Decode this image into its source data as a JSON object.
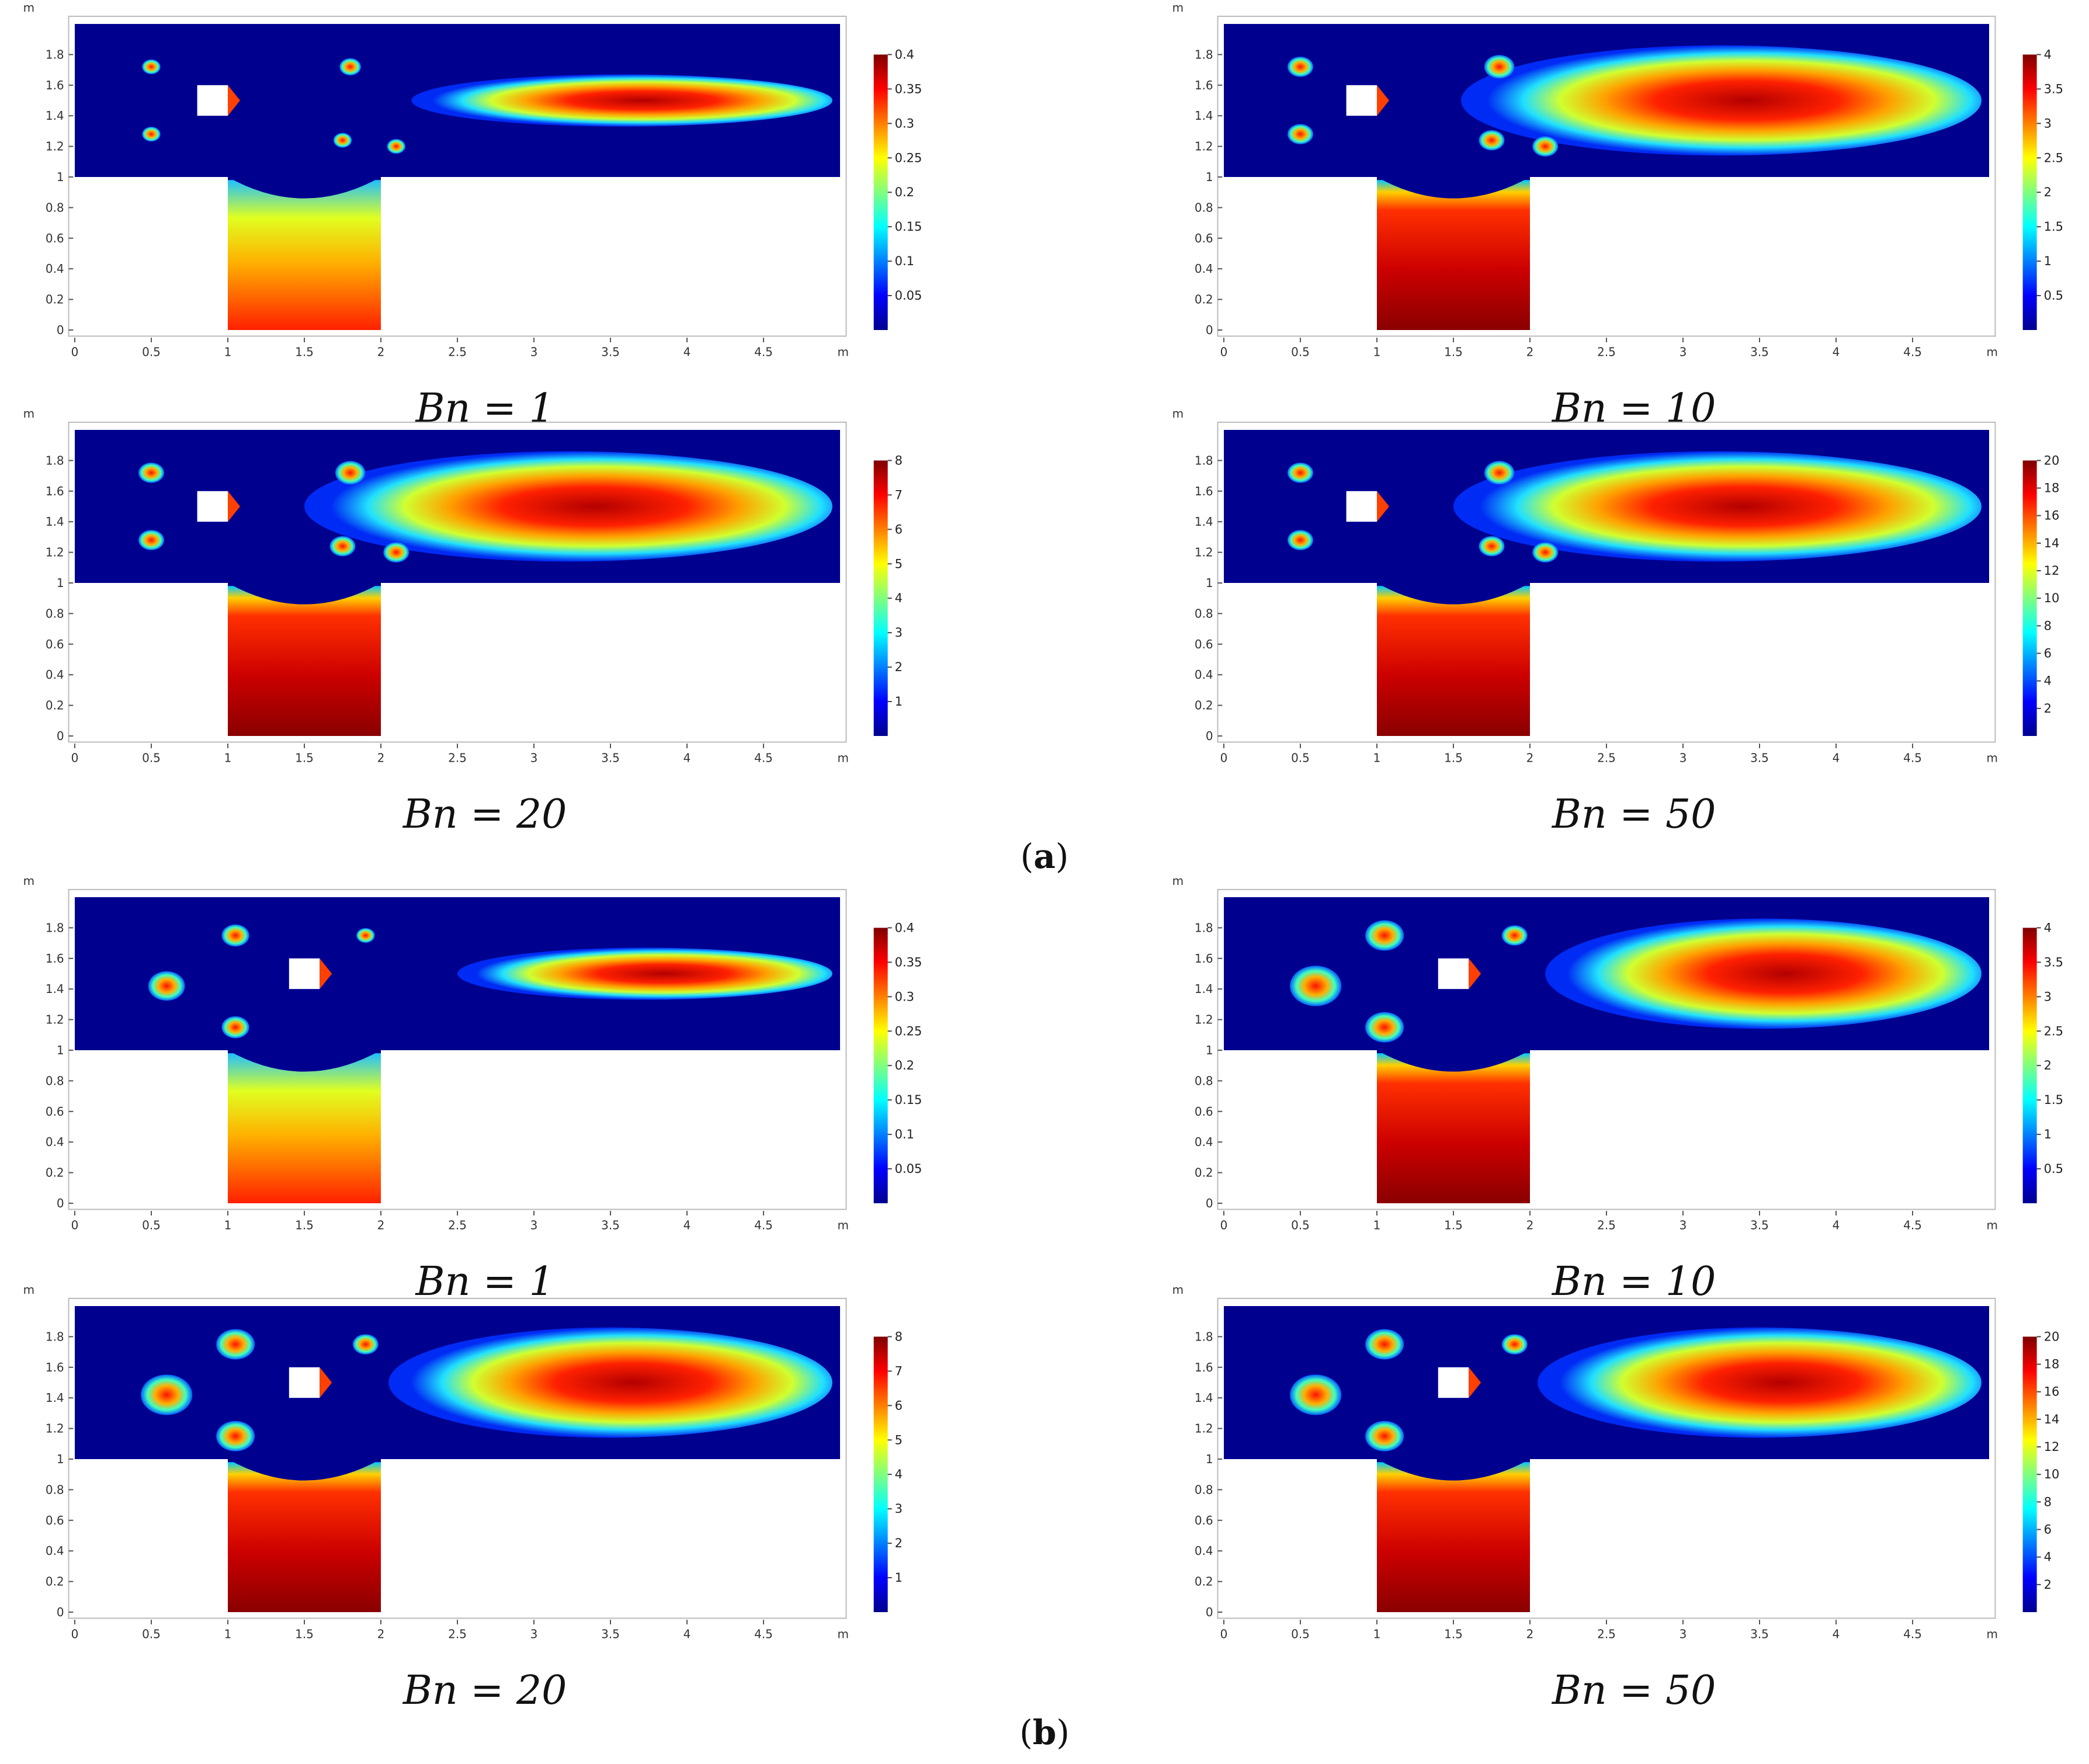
{
  "figure": {
    "parts": [
      {
        "label": "a"
      },
      {
        "label": "b"
      }
    ]
  },
  "chart_data": [
    {
      "type": "heatmap",
      "part": "a",
      "caption": "Bn = 1",
      "xlim": [
        0,
        5
      ],
      "ylim": [
        0,
        2
      ],
      "axis_unit": "m",
      "xticks": [
        "0",
        "0.5",
        "1",
        "1.5",
        "2",
        "2.5",
        "3",
        "3.5",
        "4",
        "4.5"
      ],
      "yticks": [
        "0",
        "0.2",
        "0.4",
        "0.6",
        "0.8",
        "1",
        "1.2",
        "1.4",
        "1.6",
        "1.8"
      ],
      "colorbar": {
        "min": 0,
        "max": 0.4,
        "ticks": [
          "0.05",
          "0.1",
          "0.15",
          "0.2",
          "0.25",
          "0.3",
          "0.35",
          "0.4"
        ]
      },
      "obstacle_center": [
        0.9,
        1.5
      ],
      "vortex_extent": [
        2.2,
        4.95
      ],
      "rotated": false
    },
    {
      "type": "heatmap",
      "part": "a",
      "caption": "Bn = 10",
      "xlim": [
        0,
        5
      ],
      "ylim": [
        0,
        2
      ],
      "axis_unit": "m",
      "xticks": [
        "0",
        "0.5",
        "1",
        "1.5",
        "2",
        "2.5",
        "3",
        "3.5",
        "4",
        "4.5"
      ],
      "yticks": [
        "0",
        "0.2",
        "0.4",
        "0.6",
        "0.8",
        "1",
        "1.2",
        "1.4",
        "1.6",
        "1.8"
      ],
      "colorbar": {
        "min": 0,
        "max": 4,
        "ticks": [
          "0.5",
          "1",
          "1.5",
          "2",
          "2.5",
          "3",
          "3.5",
          "4"
        ]
      },
      "obstacle_center": [
        0.9,
        1.5
      ],
      "vortex_extent": [
        1.55,
        4.95
      ],
      "rotated": false
    },
    {
      "type": "heatmap",
      "part": "a",
      "caption": "Bn = 20",
      "xlim": [
        0,
        5
      ],
      "ylim": [
        0,
        2
      ],
      "axis_unit": "m",
      "xticks": [
        "0",
        "0.5",
        "1",
        "1.5",
        "2",
        "2.5",
        "3",
        "3.5",
        "4",
        "4.5"
      ],
      "yticks": [
        "0",
        "0.2",
        "0.4",
        "0.6",
        "0.8",
        "1",
        "1.2",
        "1.4",
        "1.6",
        "1.8"
      ],
      "colorbar": {
        "min": 0,
        "max": 8,
        "ticks": [
          "1",
          "2",
          "3",
          "4",
          "5",
          "6",
          "7",
          "8"
        ]
      },
      "obstacle_center": [
        0.9,
        1.5
      ],
      "vortex_extent": [
        1.5,
        4.95
      ],
      "rotated": false
    },
    {
      "type": "heatmap",
      "part": "a",
      "caption": "Bn = 50",
      "xlim": [
        0,
        5
      ],
      "ylim": [
        0,
        2
      ],
      "axis_unit": "m",
      "xticks": [
        "0",
        "0.5",
        "1",
        "1.5",
        "2",
        "2.5",
        "3",
        "3.5",
        "4",
        "4.5"
      ],
      "yticks": [
        "0",
        "0.2",
        "0.4",
        "0.6",
        "0.8",
        "1",
        "1.2",
        "1.4",
        "1.6",
        "1.8"
      ],
      "colorbar": {
        "min": 0,
        "max": 20,
        "ticks": [
          "2",
          "4",
          "6",
          "8",
          "10",
          "12",
          "14",
          "16",
          "18",
          "20"
        ]
      },
      "obstacle_center": [
        0.9,
        1.5
      ],
      "vortex_extent": [
        1.5,
        4.95
      ],
      "rotated": false
    },
    {
      "type": "heatmap",
      "part": "b",
      "caption": "Bn = 1",
      "xlim": [
        0,
        5
      ],
      "ylim": [
        0,
        2
      ],
      "axis_unit": "m",
      "xticks": [
        "0",
        "0.5",
        "1",
        "1.5",
        "2",
        "2.5",
        "3",
        "3.5",
        "4",
        "4.5"
      ],
      "yticks": [
        "0",
        "0.2",
        "0.4",
        "0.6",
        "0.8",
        "1",
        "1.2",
        "1.4",
        "1.6",
        "1.8"
      ],
      "colorbar": {
        "min": 0,
        "max": 0.4,
        "ticks": [
          "0.05",
          "0.1",
          "0.15",
          "0.2",
          "0.25",
          "0.3",
          "0.35",
          "0.4"
        ]
      },
      "obstacle_center": [
        1.5,
        1.5
      ],
      "vortex_extent": [
        2.5,
        4.95
      ],
      "rotated": true
    },
    {
      "type": "heatmap",
      "part": "b",
      "caption": "Bn = 10",
      "xlim": [
        0,
        5
      ],
      "ylim": [
        0,
        2
      ],
      "axis_unit": "m",
      "xticks": [
        "0",
        "0.5",
        "1",
        "1.5",
        "2",
        "2.5",
        "3",
        "3.5",
        "4",
        "4.5"
      ],
      "yticks": [
        "0",
        "0.2",
        "0.4",
        "0.6",
        "0.8",
        "1",
        "1.2",
        "1.4",
        "1.6",
        "1.8"
      ],
      "colorbar": {
        "min": 0,
        "max": 4,
        "ticks": [
          "0.5",
          "1",
          "1.5",
          "2",
          "2.5",
          "3",
          "3.5",
          "4"
        ]
      },
      "obstacle_center": [
        1.5,
        1.5
      ],
      "vortex_extent": [
        2.1,
        4.95
      ],
      "rotated": true
    },
    {
      "type": "heatmap",
      "part": "b",
      "caption": "Bn = 20",
      "xlim": [
        0,
        5
      ],
      "ylim": [
        0,
        2
      ],
      "axis_unit": "m",
      "xticks": [
        "0",
        "0.5",
        "1",
        "1.5",
        "2",
        "2.5",
        "3",
        "3.5",
        "4",
        "4.5"
      ],
      "yticks": [
        "0",
        "0.2",
        "0.4",
        "0.6",
        "0.8",
        "1",
        "1.2",
        "1.4",
        "1.6",
        "1.8"
      ],
      "colorbar": {
        "min": 0,
        "max": 8,
        "ticks": [
          "1",
          "2",
          "3",
          "4",
          "5",
          "6",
          "7",
          "8"
        ]
      },
      "obstacle_center": [
        1.5,
        1.5
      ],
      "vortex_extent": [
        2.05,
        4.95
      ],
      "rotated": true
    },
    {
      "type": "heatmap",
      "part": "b",
      "caption": "Bn = 50",
      "xlim": [
        0,
        5
      ],
      "ylim": [
        0,
        2
      ],
      "axis_unit": "m",
      "xticks": [
        "0",
        "0.5",
        "1",
        "1.5",
        "2",
        "2.5",
        "3",
        "3.5",
        "4",
        "4.5"
      ],
      "yticks": [
        "0",
        "0.2",
        "0.4",
        "0.6",
        "0.8",
        "1",
        "1.2",
        "1.4",
        "1.6",
        "1.8"
      ],
      "colorbar": {
        "min": 0,
        "max": 20,
        "ticks": [
          "2",
          "4",
          "6",
          "8",
          "10",
          "12",
          "14",
          "16",
          "18",
          "20"
        ]
      },
      "obstacle_center": [
        1.5,
        1.5
      ],
      "vortex_extent": [
        2.05,
        4.95
      ],
      "rotated": true
    }
  ]
}
